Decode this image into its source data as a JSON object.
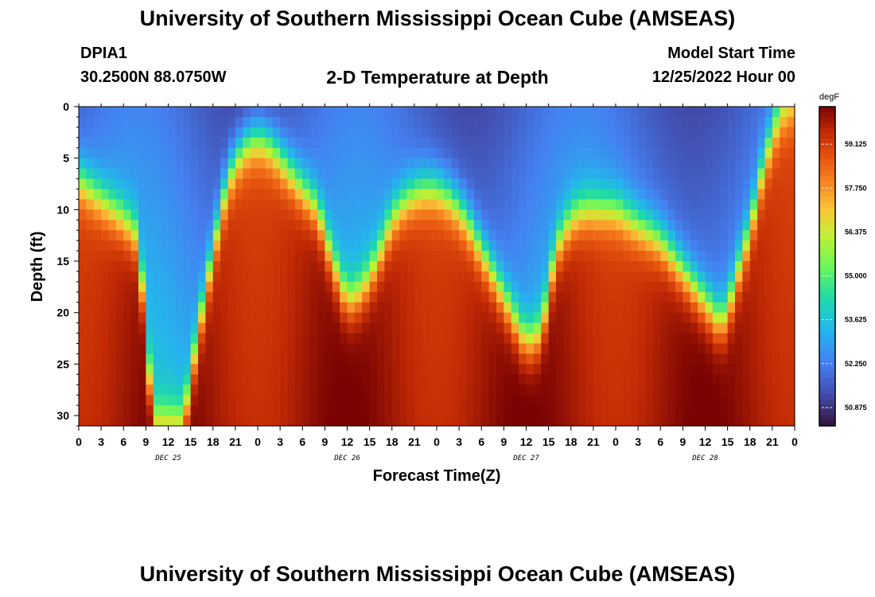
{
  "header": {
    "title": "University of Southern Mississippi Ocean Cube (AMSEAS)",
    "station": "DPIA1",
    "coordinates": "30.2500N  88.0750W",
    "subtitle": "2-D Temperature at Depth",
    "model_start_label": "Model Start Time",
    "model_start_value": "12/25/2022 Hour 00"
  },
  "footer": {
    "title": "University of Southern Mississippi Ocean Cube (AMSEAS)"
  },
  "chart_data": {
    "type": "heatmap",
    "title": "2-D Temperature at Depth",
    "xlabel": "Forecast Time(Z)",
    "ylabel": "Depth (ft)",
    "x_hours": [
      0,
      96
    ],
    "x_tick_step_hours": 3,
    "x_tick_labels": [
      "0",
      "3",
      "6",
      "9",
      "12",
      "15",
      "18",
      "21",
      "0",
      "3",
      "6",
      "9",
      "12",
      "15",
      "18",
      "21",
      "0",
      "3",
      "6",
      "9",
      "12",
      "15",
      "18",
      "21",
      "0",
      "3",
      "6",
      "9",
      "12",
      "15",
      "18",
      "21",
      "0"
    ],
    "day_labels": [
      {
        "label": "DEC 25",
        "hour": 12
      },
      {
        "label": "DEC 26",
        "hour": 36
      },
      {
        "label": "DEC 27",
        "hour": 60
      },
      {
        "label": "DEC 28",
        "hour": 84
      }
    ],
    "ylim": [
      0,
      31
    ],
    "y_ticks": [
      0,
      5,
      10,
      15,
      20,
      25,
      30
    ],
    "colorbar": {
      "unit": "degF",
      "min": 50.3,
      "max": 60.3,
      "labels": [
        "59.125",
        "57.750",
        "56.375",
        "55.000",
        "53.625",
        "52.250",
        "50.875"
      ]
    },
    "thermocline_depth_ft": [
      [
        0,
        7
      ],
      [
        3,
        9
      ],
      [
        6,
        11
      ],
      [
        8,
        13
      ],
      [
        10,
        31
      ],
      [
        12,
        31
      ],
      [
        14,
        31
      ],
      [
        16,
        22
      ],
      [
        18,
        14
      ],
      [
        20,
        7
      ],
      [
        22,
        4
      ],
      [
        24,
        3
      ],
      [
        26,
        4
      ],
      [
        28,
        6
      ],
      [
        30,
        8
      ],
      [
        32,
        10
      ],
      [
        34,
        15
      ],
      [
        36,
        19
      ],
      [
        38,
        18
      ],
      [
        40,
        15
      ],
      [
        42,
        11
      ],
      [
        44,
        9
      ],
      [
        46,
        8
      ],
      [
        48,
        8
      ],
      [
        50,
        9
      ],
      [
        52,
        11
      ],
      [
        54,
        14
      ],
      [
        56,
        17
      ],
      [
        58,
        20
      ],
      [
        60,
        23
      ],
      [
        62,
        22
      ],
      [
        63,
        18
      ],
      [
        64,
        14
      ],
      [
        66,
        11
      ],
      [
        68,
        10
      ],
      [
        70,
        10
      ],
      [
        72,
        10
      ],
      [
        74,
        11
      ],
      [
        76,
        12
      ],
      [
        78,
        13
      ],
      [
        80,
        15
      ],
      [
        82,
        17
      ],
      [
        84,
        19
      ],
      [
        86,
        21
      ],
      [
        87,
        20
      ],
      [
        88,
        17
      ],
      [
        90,
        12
      ],
      [
        92,
        5
      ],
      [
        94,
        1
      ],
      [
        96,
        0
      ]
    ],
    "warm_temp_degF": 59.5,
    "cold_temp_degF": 51.8
  }
}
